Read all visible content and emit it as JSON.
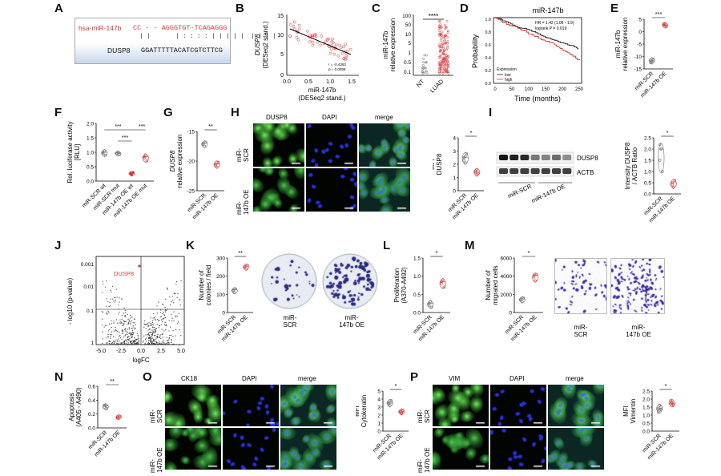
{
  "panel_labels": [
    "A",
    "B",
    "C",
    "D",
    "E",
    "F",
    "G",
    "H",
    "I",
    "J",
    "K",
    "L",
    "M",
    "N",
    "O",
    "P"
  ],
  "colors": {
    "control": "#6b6b6b",
    "oe": "#d13a3a",
    "green": "#3bbf3b",
    "blue": "#1a1aa8",
    "seq_box": "#c9d8ee"
  },
  "panelA": {
    "mirna_name": "hsa-miR-147b",
    "mirna_seq": "CC - - AGGGTGT-TCAGAGGG",
    "pairing": "| |       | : : : : | | | | |  | | | |",
    "target_name": "DUSP8",
    "target_seq": "GGATTTTTACATCGTCTTCG"
  },
  "panelB": {
    "ylabel_gene": "DUSP8",
    "ylabel_sub": "(DESeq2 stand.)",
    "xlabel_1": "miR-147b",
    "xlabel_2": "(DESeq2 stand.)",
    "stat_r": "r = -0.4363",
    "stat_p": "p = 0.0099",
    "x_ticks": [
      "0.0",
      "0.5",
      "1.0",
      "1.5"
    ],
    "y_ticks": [
      "15",
      "10",
      "5",
      "0"
    ]
  },
  "panelC": {
    "ylabel_1": "miR-147b",
    "ylabel_2": "relative expression",
    "sig": "****",
    "y_ticks": [
      "100",
      "50",
      "10",
      "5",
      "1",
      "0.5",
      "0.1"
    ],
    "categories": [
      "NT",
      "LUAD"
    ]
  },
  "panelD": {
    "title": "miR-147b",
    "stats_1": "HR = 1.42 (1.06 - 1.9)",
    "stats_2": "logrank P = 0.019",
    "ylabel": "Probability",
    "xlabel": "Time (months)",
    "x_ticks": [
      "0",
      "50",
      "100",
      "150",
      "200",
      "250"
    ],
    "y_ticks": [
      "0.0",
      "0.2",
      "0.4",
      "0.6",
      "0.8",
      "1.0"
    ],
    "legend_title": "Expression",
    "legend_low": "low",
    "legend_high": "high"
  },
  "panelE": {
    "ylabel_1": "miR-147b",
    "ylabel_2": "relative expression",
    "sig": "***",
    "y_ticks": [
      "5",
      "0",
      "-5",
      "-10",
      "-15"
    ],
    "categories": [
      "miR-SCR",
      "miR-147b OE"
    ]
  },
  "panelF": {
    "ylabel_1": "Rel. luciferase activity",
    "ylabel_2": "[RLU]",
    "sig_1": "***",
    "sig_2": "***",
    "sig_3": "***",
    "y_ticks": [
      "2.0",
      "1.5",
      "1.0",
      "0.5",
      "0.0"
    ],
    "categories": [
      "miR-SCR wt",
      "miR-SCR mut",
      "miR-147b OE wt",
      "miR-147b OE mut"
    ]
  },
  "panelG": {
    "ylabel_gene": "DUSP8",
    "ylabel_sub": "relative expression",
    "sig": "**",
    "y_ticks": [
      "-15",
      "-20",
      "-25"
    ],
    "categories": [
      "miR-SCR",
      "miR-147b OE"
    ]
  },
  "panelH": {
    "col_labels": [
      "DUSP8",
      "DAPI",
      "merge"
    ],
    "row_labels_1": [
      "miR-",
      "SCR"
    ],
    "row_labels_2": [
      "miR-",
      "147b OE"
    ],
    "ylabel_1": "MFI",
    "ylabel_2": "DUSP8",
    "sig": "*",
    "y_ticks": [
      "4",
      "3",
      "2",
      "1",
      "0"
    ],
    "categories": [
      "miR-SCR",
      "miR-147b OE"
    ]
  },
  "panelI": {
    "band_1": "DUSP8",
    "band_2": "ACTB",
    "lane_group_1": "miR-SCR",
    "lane_group_2": "miR-147b OE",
    "ylabel_1": "Intensity DUSP8",
    "ylabel_2": "/ ACTB Ratio",
    "sig": "*",
    "y_ticks": [
      "2.5",
      "2.0",
      "1.5",
      "1.0",
      "0.5",
      "0.0"
    ],
    "categories": [
      "miR-SCR",
      "miR-147b OE"
    ]
  },
  "panelJ": {
    "ylabel": "- log10 (p-value)",
    "xlabel": "logFC",
    "highlight": "DUSP8",
    "y_ticks": [
      "0.001",
      "0.01",
      "0.1",
      "1"
    ],
    "x_ticks": [
      "-5.0",
      "-2.5",
      "0.0",
      "2.5",
      "5.0"
    ]
  },
  "panelK": {
    "ylabel_1": "Number of",
    "ylabel_2": "colonies / field",
    "sig": "**",
    "y_ticks": [
      "300",
      "200",
      "100",
      "0"
    ],
    "categories": [
      "miR-SCR",
      "miR-147b OE"
    ],
    "dish_1": [
      "miR-",
      "SCR"
    ],
    "dish_2": [
      "miR-",
      "147b OE"
    ]
  },
  "panelL": {
    "ylabel_1": "Proliferation",
    "ylabel_2": "(A370-A492)",
    "sig": "*",
    "y_ticks": [
      "1.5",
      "1.0",
      "0.5",
      "0.0"
    ],
    "categories": [
      "miR-SCR",
      "miR-147b OE"
    ]
  },
  "panelM": {
    "ylabel_1": "Number of",
    "ylabel_2": "migrated cells",
    "sig": "*",
    "y_ticks": [
      "6000",
      "4000",
      "2000",
      "0"
    ],
    "categories": [
      "miR-SCR",
      "miR-147b OE"
    ],
    "image_1": [
      "miR-",
      "SCR"
    ],
    "image_2": [
      "miR-",
      "147b OE"
    ]
  },
  "panelN": {
    "ylabel_1": "Apoptosis",
    "ylabel_2": "(A405 - A490)",
    "sig": "**",
    "y_ticks": [
      "0.6",
      "0.4",
      "0.2",
      "0.0"
    ],
    "categories": [
      "miR-SCR",
      "miR-147b OE"
    ]
  },
  "panelO": {
    "col_labels": [
      "CK18",
      "DAPI",
      "merge"
    ],
    "row_labels_1": [
      "miR-",
      "SCR"
    ],
    "row_labels_2": [
      "miR-",
      "147b OE"
    ],
    "ylabel_1": "MFI",
    "ylabel_2": "Cytokeratin",
    "sig": "*",
    "y_ticks": [
      "5",
      "4",
      "3",
      "2",
      "1",
      "0"
    ],
    "categories": [
      "miR-SCR",
      "miR-147b OE"
    ]
  },
  "panelP": {
    "col_labels": [
      "VIM",
      "DAPI",
      "merge"
    ],
    "row_labels_1": [
      "miR-",
      "SCR"
    ],
    "row_labels_2": [
      "miR-",
      "147b OE"
    ],
    "ylabel_1": "MFI",
    "ylabel_2": "Vimentin",
    "sig": "*",
    "y_ticks": [
      "2.5",
      "2.0",
      "1.5",
      "1.0",
      "0.5",
      "0.0"
    ],
    "categories": [
      "miR-SCR",
      "miR-147b OE"
    ]
  }
}
